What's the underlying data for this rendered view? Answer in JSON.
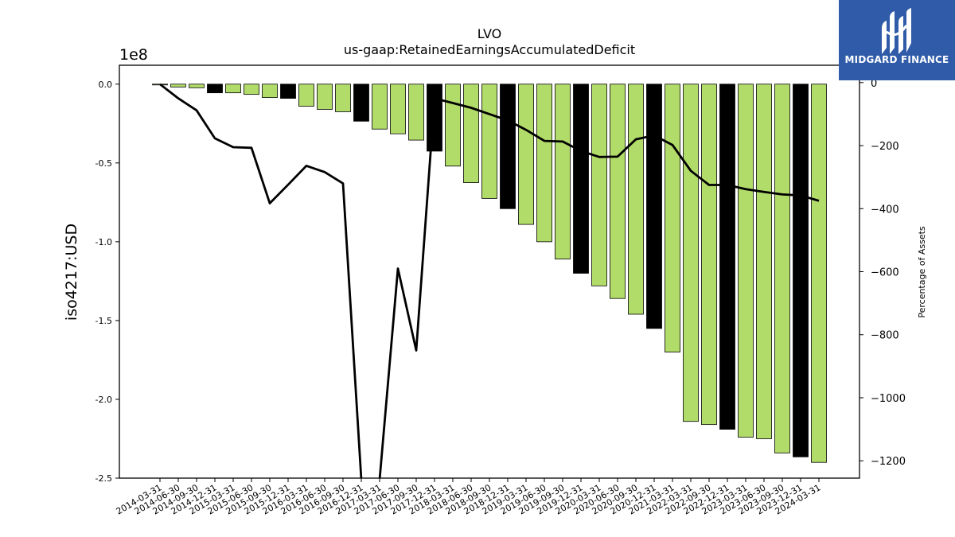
{
  "chart_data": {
    "type": "bar",
    "title": "LVO",
    "subtitle": "us-gaap:RetainedEarningsAccumulatedDeficit",
    "ylabel": "iso4217:USD",
    "y_offset_label": "1e8",
    "y2label": "Percentage of Assets",
    "ylim": [
      -2.5,
      0.12
    ],
    "y2lim": [
      -1255,
      55
    ],
    "y_ticks": [
      "0.0",
      "-0.5",
      "-1.0",
      "-1.5",
      "-2.0",
      "-2.5"
    ],
    "y2_ticks": [
      "0",
      "−200",
      "−400",
      "−600",
      "−800",
      "−1000",
      "−1200"
    ],
    "grid": false,
    "colors": {
      "bar_quarter": "#b2dc6a",
      "bar_year_end": "#000000",
      "line": "#000000"
    },
    "categories": [
      "2014-03-31",
      "2014-06-30",
      "2014-09-30",
      "2014-12-31",
      "2015-03-31",
      "2015-06-30",
      "2015-09-30",
      "2015-12-31",
      "2016-03-31",
      "2016-06-30",
      "2016-09-30",
      "2016-12-31",
      "2017-03-31",
      "2017-06-30",
      "2017-09-30",
      "2017-12-31",
      "2018-03-31",
      "2018-06-30",
      "2018-09-30",
      "2018-12-31",
      "2019-03-31",
      "2019-06-30",
      "2019-09-30",
      "2019-12-31",
      "2020-03-31",
      "2020-06-30",
      "2020-09-30",
      "2020-12-31",
      "2021-03-31",
      "2022-03-31",
      "2022-09-30",
      "2022-12-31",
      "2023-03-31",
      "2023-06-30",
      "2023-09-30",
      "2023-12-31",
      "2024-03-31"
    ],
    "series": [
      {
        "kind": "bar",
        "values": [
          -0.005,
          -0.018,
          -0.023,
          -0.055,
          -0.055,
          -0.065,
          -0.085,
          -0.09,
          -0.14,
          -0.16,
          -0.175,
          -0.235,
          -0.285,
          -0.315,
          -0.355,
          -0.425,
          -0.52,
          -0.625,
          -0.725,
          -0.79,
          -0.89,
          -1.0,
          -1.11,
          -1.2,
          -1.28,
          -1.36,
          -1.46,
          -1.55,
          -1.7,
          -2.14,
          -2.16,
          -2.19,
          -2.24,
          -2.25,
          -2.34,
          -2.365,
          -2.4
        ],
        "year_end": [
          false,
          false,
          false,
          true,
          false,
          false,
          false,
          true,
          false,
          false,
          false,
          true,
          false,
          false,
          false,
          true,
          false,
          false,
          false,
          true,
          false,
          false,
          false,
          true,
          false,
          false,
          false,
          true,
          false,
          false,
          false,
          true,
          false,
          false,
          false,
          true,
          false
        ]
      },
      {
        "kind": "line",
        "axis": "right",
        "values": [
          -5,
          -50,
          -88,
          -177,
          -205,
          -207,
          -383,
          -324,
          -264,
          -284,
          -320,
          -1260,
          -1260,
          -590,
          -850,
          -50,
          -65,
          -80,
          -100,
          -120,
          -150,
          -185,
          -187,
          -217,
          -236,
          -235,
          -180,
          -168,
          -198,
          -280,
          -325,
          -325,
          -338,
          -347,
          -355,
          -358,
          -375
        ]
      }
    ]
  },
  "logo": {
    "name": "MIDGARD FINANCE",
    "icon": "m-logo-icon"
  }
}
